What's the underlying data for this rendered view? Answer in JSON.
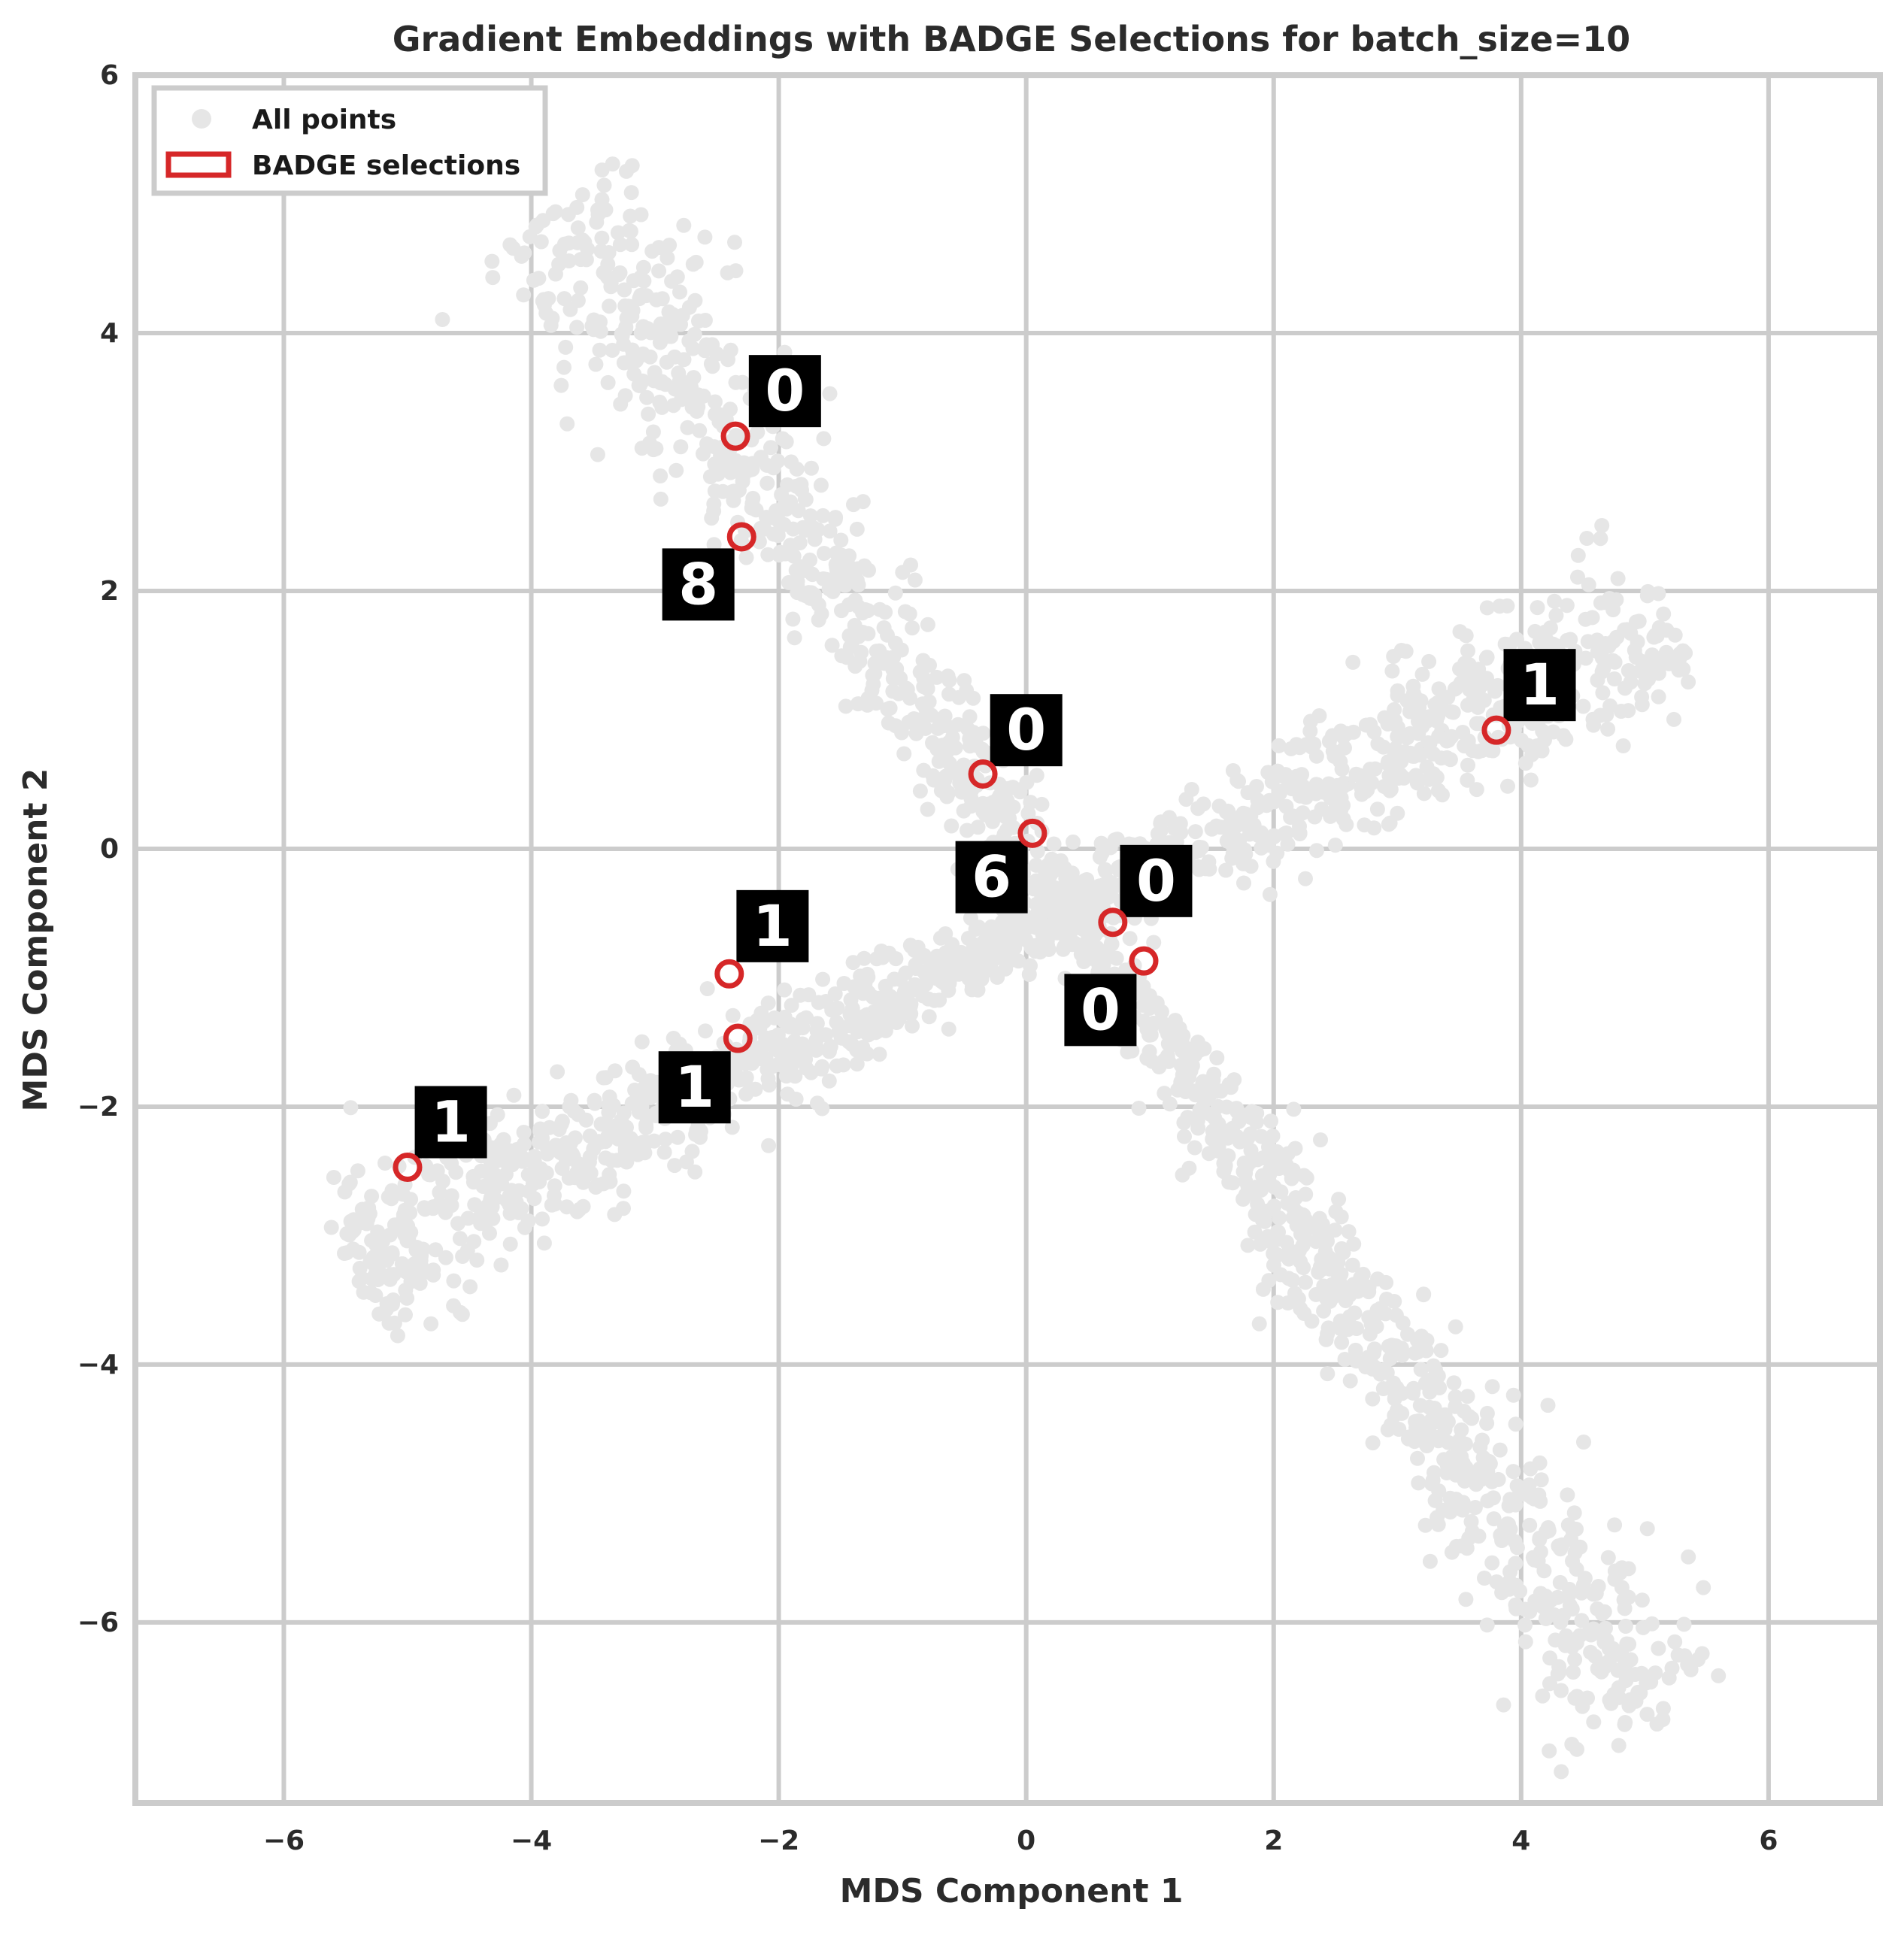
{
  "chart_data": {
    "type": "scatter",
    "title": "Gradient Embeddings with BADGE Selections for batch_size=10",
    "xlabel": "MDS Component 1",
    "ylabel": "MDS Component 2",
    "xlim": [
      -7.2,
      6.9
    ],
    "ylim": [
      -7.4,
      6.0
    ],
    "xticks": [
      -6,
      -4,
      -2,
      0,
      2,
      4,
      6
    ],
    "yticks": [
      -6,
      -4,
      -2,
      0,
      2,
      4,
      6
    ],
    "xtick_labels": [
      "−6",
      "−4",
      "−2",
      "0",
      "2",
      "4",
      "6"
    ],
    "ytick_labels": [
      "−6",
      "−4",
      "−2",
      "0",
      "2",
      "4",
      "6"
    ],
    "grid": true,
    "legend": {
      "placement": "top-left",
      "entries": [
        {
          "label": "All points",
          "marker": "filled-circle",
          "color": "#e6e6e6"
        },
        {
          "label": "BADGE selections",
          "marker": "hollow-circle",
          "color": "#d62728"
        }
      ]
    },
    "background_clusters": [
      {
        "name_visible": false,
        "start": [
          -3.8,
          5.0
        ],
        "end": [
          5.1,
          -6.8
        ]
      },
      {
        "name_visible": false,
        "start": [
          -5.5,
          -3.2
        ],
        "end": [
          5.2,
          1.8
        ]
      }
    ],
    "selections": [
      {
        "x": -2.35,
        "y": 3.2,
        "digit": "0",
        "thumb": [
          -1.95,
          3.55
        ]
      },
      {
        "x": -2.3,
        "y": 2.42,
        "digit": "8",
        "thumb": [
          -2.65,
          2.05
        ]
      },
      {
        "x": -0.35,
        "y": 0.58,
        "digit": "0",
        "thumb": [
          0.0,
          0.92
        ]
      },
      {
        "x": 0.05,
        "y": 0.12,
        "digit": "6",
        "thumb": [
          -0.28,
          -0.22
        ]
      },
      {
        "x": 0.7,
        "y": -0.57,
        "digit": "0",
        "thumb": [
          1.05,
          -0.25
        ]
      },
      {
        "x": 0.95,
        "y": -0.87,
        "digit": "0",
        "thumb": [
          0.6,
          -1.25
        ]
      },
      {
        "x": -2.4,
        "y": -0.97,
        "digit": "1",
        "thumb": [
          -2.05,
          -0.6
        ]
      },
      {
        "x": -2.33,
        "y": -1.47,
        "digit": "1",
        "thumb": [
          -2.68,
          -1.85
        ]
      },
      {
        "x": -5.0,
        "y": -2.47,
        "digit": "1",
        "thumb": [
          -4.65,
          -2.12
        ]
      },
      {
        "x": 3.8,
        "y": 0.92,
        "digit": "1",
        "thumb": [
          4.15,
          1.27
        ]
      }
    ],
    "colors": {
      "points": "#e6e6e6",
      "selection": "#d62728",
      "grid": "#cccccc",
      "frame": "#cccccc",
      "thumb_bg": "#000000",
      "thumb_fg": "#ffffff"
    }
  }
}
